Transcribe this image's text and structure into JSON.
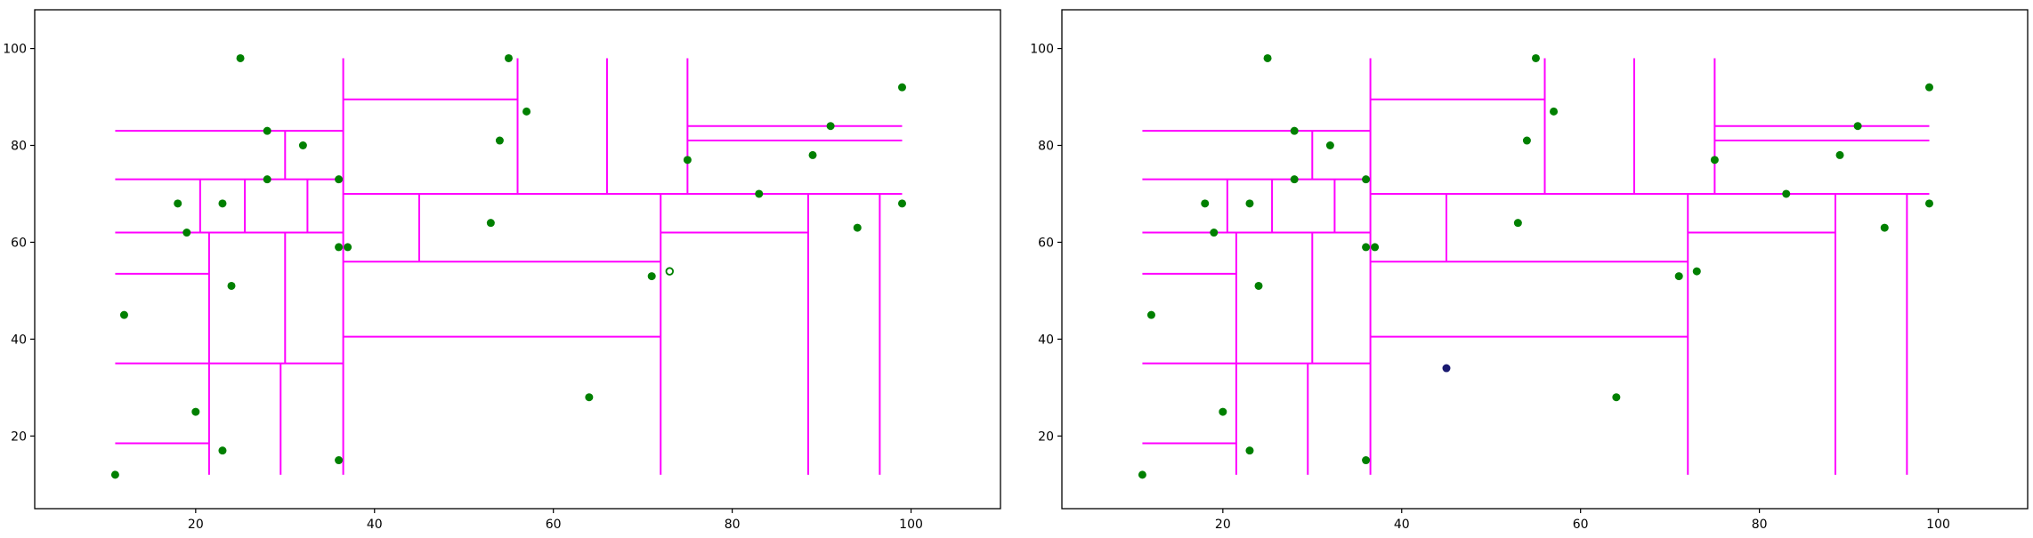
{
  "colors": {
    "split_lines": "#ff00ff",
    "points": "#008000",
    "query_point": "#191970",
    "background": "#ffffff"
  },
  "chart_data": [
    {
      "type": "scatter",
      "description_kind": "kd-tree partition",
      "xlim": [
        2,
        110
      ],
      "ylim": [
        5,
        108
      ],
      "xticks": [
        "20",
        "40",
        "60",
        "80",
        "100"
      ],
      "yticks": [
        "20",
        "40",
        "60",
        "80",
        "100"
      ],
      "grid": false,
      "points": [
        [
          11,
          12
        ],
        [
          25,
          98
        ],
        [
          28,
          83
        ],
        [
          32,
          80
        ],
        [
          18,
          68
        ],
        [
          19,
          62
        ],
        [
          23,
          68
        ],
        [
          28,
          73
        ],
        [
          36,
          73
        ],
        [
          12,
          45
        ],
        [
          24,
          51
        ],
        [
          20,
          25
        ],
        [
          23,
          17
        ],
        [
          36,
          15
        ],
        [
          36,
          59
        ],
        [
          37,
          59
        ],
        [
          55,
          98
        ],
        [
          57,
          87
        ],
        [
          54,
          81
        ],
        [
          53,
          64
        ],
        [
          75,
          77
        ],
        [
          71,
          53
        ],
        [
          64,
          28
        ],
        [
          91,
          84
        ],
        [
          89,
          78
        ],
        [
          83,
          70
        ],
        [
          99,
          92
        ],
        [
          99,
          68
        ],
        [
          94,
          63
        ]
      ],
      "hollow_points": [
        [
          73,
          54
        ]
      ],
      "horizontal_splits": [
        {
          "y": 83,
          "x": [
            11,
            36.5
          ]
        },
        {
          "y": 73,
          "x": [
            11,
            36.5
          ]
        },
        {
          "y": 62,
          "x": [
            11,
            36.5
          ]
        },
        {
          "y": 53.5,
          "x": [
            11,
            21.5
          ]
        },
        {
          "y": 35,
          "x": [
            11,
            36.5
          ]
        },
        {
          "y": 18.5,
          "x": [
            11,
            21.5
          ]
        },
        {
          "y": 89.5,
          "x": [
            36.5,
            56
          ]
        },
        {
          "y": 70,
          "x": [
            36.5,
            99
          ]
        },
        {
          "y": 56,
          "x": [
            36.5,
            72
          ]
        },
        {
          "y": 40.5,
          "x": [
            36.5,
            72
          ]
        },
        {
          "y": 84,
          "x": [
            75,
            99
          ]
        },
        {
          "y": 81,
          "x": [
            75,
            99
          ]
        },
        {
          "y": 62,
          "x": [
            72,
            88.5
          ]
        }
      ],
      "vertical_splits": [
        {
          "x": 36.5,
          "y": [
            12,
            98
          ]
        },
        {
          "x": 30,
          "y": [
            73,
            83
          ]
        },
        {
          "x": 20.5,
          "y": [
            62,
            73
          ]
        },
        {
          "x": 25.5,
          "y": [
            62,
            73
          ]
        },
        {
          "x": 32.5,
          "y": [
            62,
            73
          ]
        },
        {
          "x": 21.5,
          "y": [
            12,
            62
          ]
        },
        {
          "x": 30,
          "y": [
            35,
            62
          ]
        },
        {
          "x": 29.5,
          "y": [
            12,
            35
          ]
        },
        {
          "x": 56,
          "y": [
            70,
            98
          ]
        },
        {
          "x": 66,
          "y": [
            70,
            98
          ]
        },
        {
          "x": 75,
          "y": [
            70,
            98
          ]
        },
        {
          "x": 45,
          "y": [
            56,
            70
          ]
        },
        {
          "x": 72,
          "y": [
            12,
            70
          ]
        },
        {
          "x": 88.5,
          "y": [
            12,
            70
          ]
        },
        {
          "x": 96.5,
          "y": [
            12,
            70
          ]
        }
      ]
    },
    {
      "type": "scatter",
      "description_kind": "kd-tree partition",
      "xlim": [
        2,
        110
      ],
      "ylim": [
        5,
        108
      ],
      "xticks": [
        "20",
        "40",
        "60",
        "80",
        "100"
      ],
      "yticks": [
        "20",
        "40",
        "60",
        "80",
        "100"
      ],
      "grid": false,
      "points": [
        [
          11,
          12
        ],
        [
          25,
          98
        ],
        [
          28,
          83
        ],
        [
          32,
          80
        ],
        [
          18,
          68
        ],
        [
          19,
          62
        ],
        [
          23,
          68
        ],
        [
          28,
          73
        ],
        [
          36,
          73
        ],
        [
          12,
          45
        ],
        [
          24,
          51
        ],
        [
          20,
          25
        ],
        [
          23,
          17
        ],
        [
          36,
          15
        ],
        [
          36,
          59
        ],
        [
          37,
          59
        ],
        [
          55,
          98
        ],
        [
          57,
          87
        ],
        [
          54,
          81
        ],
        [
          53,
          64
        ],
        [
          75,
          77
        ],
        [
          71,
          53
        ],
        [
          73,
          54
        ],
        [
          64,
          28
        ],
        [
          91,
          84
        ],
        [
          89,
          78
        ],
        [
          83,
          70
        ],
        [
          99,
          92
        ],
        [
          99,
          68
        ],
        [
          94,
          63
        ]
      ],
      "query_points": [
        [
          45,
          34
        ]
      ],
      "horizontal_splits": [
        {
          "y": 83,
          "x": [
            11,
            36.5
          ]
        },
        {
          "y": 73,
          "x": [
            11,
            36.5
          ]
        },
        {
          "y": 62,
          "x": [
            11,
            36.5
          ]
        },
        {
          "y": 53.5,
          "x": [
            11,
            21.5
          ]
        },
        {
          "y": 35,
          "x": [
            11,
            36.5
          ]
        },
        {
          "y": 18.5,
          "x": [
            11,
            21.5
          ]
        },
        {
          "y": 89.5,
          "x": [
            36.5,
            56
          ]
        },
        {
          "y": 70,
          "x": [
            36.5,
            99
          ]
        },
        {
          "y": 56,
          "x": [
            36.5,
            72
          ]
        },
        {
          "y": 40.5,
          "x": [
            36.5,
            72
          ]
        },
        {
          "y": 84,
          "x": [
            75,
            99
          ]
        },
        {
          "y": 81,
          "x": [
            75,
            99
          ]
        },
        {
          "y": 62,
          "x": [
            72,
            88.5
          ]
        }
      ],
      "vertical_splits": [
        {
          "x": 36.5,
          "y": [
            12,
            98
          ]
        },
        {
          "x": 30,
          "y": [
            73,
            83
          ]
        },
        {
          "x": 20.5,
          "y": [
            62,
            73
          ]
        },
        {
          "x": 25.5,
          "y": [
            62,
            73
          ]
        },
        {
          "x": 32.5,
          "y": [
            62,
            73
          ]
        },
        {
          "x": 21.5,
          "y": [
            12,
            62
          ]
        },
        {
          "x": 30,
          "y": [
            35,
            62
          ]
        },
        {
          "x": 29.5,
          "y": [
            12,
            35
          ]
        },
        {
          "x": 56,
          "y": [
            70,
            98
          ]
        },
        {
          "x": 66,
          "y": [
            70,
            98
          ]
        },
        {
          "x": 75,
          "y": [
            70,
            98
          ]
        },
        {
          "x": 45,
          "y": [
            56,
            70
          ]
        },
        {
          "x": 72,
          "y": [
            12,
            70
          ]
        },
        {
          "x": 88.5,
          "y": [
            12,
            70
          ]
        },
        {
          "x": 96.5,
          "y": [
            12,
            70
          ]
        }
      ]
    }
  ]
}
